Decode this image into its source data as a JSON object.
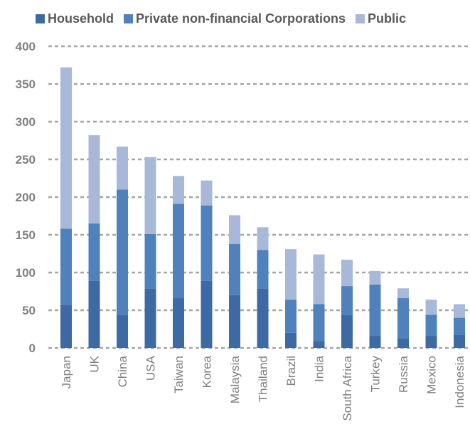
{
  "chart_data": {
    "type": "bar",
    "stacked": true,
    "categories": [
      "Japan",
      "UK",
      "China",
      "USA",
      "Taiwan",
      "Korea",
      "Malaysia",
      "Thailand",
      "Brazil",
      "India",
      "South Africa",
      "Turkey",
      "Russia",
      "Mexico",
      "Indonesia"
    ],
    "series": [
      {
        "name": "Household",
        "color": "#3e6aa3",
        "values": [
          57,
          89,
          44,
          79,
          66,
          89,
          70,
          79,
          20,
          9,
          44,
          16,
          13,
          16,
          17
        ]
      },
      {
        "name": "Private non-financial Corporations",
        "color": "#4f81bd",
        "values": [
          101,
          76,
          166,
          72,
          125,
          100,
          68,
          51,
          44,
          49,
          38,
          68,
          53,
          28,
          23
        ]
      },
      {
        "name": "Public",
        "color": "#a8b8d8",
        "values": [
          214,
          117,
          57,
          102,
          37,
          33,
          38,
          30,
          67,
          66,
          35,
          18,
          13,
          20,
          18
        ]
      }
    ],
    "yticks": [
      "0",
      "50",
      "100",
      "150",
      "200",
      "250",
      "300",
      "350",
      "400"
    ],
    "ylim": [
      0,
      400
    ],
    "grid": true,
    "legend_position": "top"
  }
}
